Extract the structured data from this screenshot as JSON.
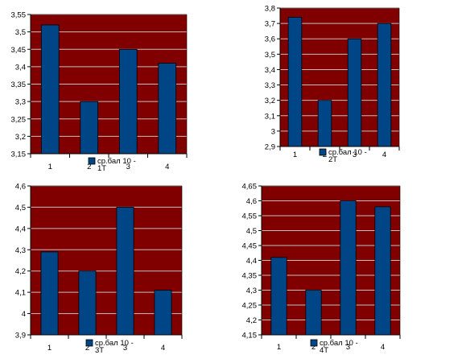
{
  "chart_data": [
    {
      "type": "bar",
      "categories": [
        "1",
        "2",
        "3",
        "4"
      ],
      "ylim": [
        3.15,
        3.55
      ],
      "ystep": 0.05,
      "yticks": [
        "3,15",
        "3,2",
        "3,25",
        "3,3",
        "3,35",
        "3,4",
        "3,45",
        "3,5",
        "3,55"
      ],
      "series": [
        {
          "name": "ср.бал 10 - 1Т",
          "values": [
            3.52,
            3.3,
            3.45,
            3.41
          ]
        }
      ],
      "legend_lines": [
        "ср.бал 10 -",
        "1Т"
      ],
      "grid": true,
      "legend": "bottom-center",
      "colors": {
        "plot_bg": "#800000",
        "bar": "#004586",
        "grid": "#c0c0c0"
      }
    },
    {
      "type": "bar",
      "categories": [
        "1",
        "2",
        "3",
        "4"
      ],
      "ylim": [
        2.9,
        3.8
      ],
      "ystep": 0.1,
      "yticks": [
        "2,9",
        "3",
        "3,1",
        "3,2",
        "3,3",
        "3,4",
        "3,5",
        "3,6",
        "3,7",
        "3,8"
      ],
      "series": [
        {
          "name": "ср.бал 10 - 2Т",
          "values": [
            3.74,
            3.2,
            3.6,
            3.7
          ]
        }
      ],
      "legend_lines": [
        "ср.бал 10 -",
        "2Т"
      ],
      "grid": true,
      "legend": "bottom-center",
      "colors": {
        "plot_bg": "#800000",
        "bar": "#004586",
        "grid": "#c0c0c0"
      }
    },
    {
      "type": "bar",
      "categories": [
        "1",
        "2",
        "3",
        "4"
      ],
      "ylim": [
        3.9,
        4.6
      ],
      "ystep": 0.1,
      "yticks": [
        "3,9",
        "4",
        "4,1",
        "4,2",
        "4,3",
        "4,4",
        "4,5",
        "4,6"
      ],
      "series": [
        {
          "name": "ср.бал 10 - 3Т",
          "values": [
            4.29,
            4.2,
            4.5,
            4.11
          ]
        }
      ],
      "legend_lines": [
        "ср.бал 10 -",
        "3Т"
      ],
      "grid": true,
      "legend": "bottom-center",
      "colors": {
        "plot_bg": "#800000",
        "bar": "#004586",
        "grid": "#c0c0c0"
      }
    },
    {
      "type": "bar",
      "categories": [
        "1",
        "2",
        "3",
        "4"
      ],
      "ylim": [
        4.15,
        4.65
      ],
      "ystep": 0.05,
      "yticks": [
        "4,15",
        "4,2",
        "4,25",
        "4,3",
        "4,35",
        "4,4",
        "4,45",
        "4,5",
        "4,55",
        "4,6",
        "4,65"
      ],
      "series": [
        {
          "name": "ср.бал 10 - 4Т",
          "values": [
            4.41,
            4.3,
            4.6,
            4.58
          ]
        }
      ],
      "legend_lines": [
        "ср.бал 10 -",
        "4Т"
      ],
      "grid": true,
      "legend": "bottom-center",
      "colors": {
        "plot_bg": "#800000",
        "bar": "#004586",
        "grid": "#c0c0c0"
      }
    }
  ]
}
